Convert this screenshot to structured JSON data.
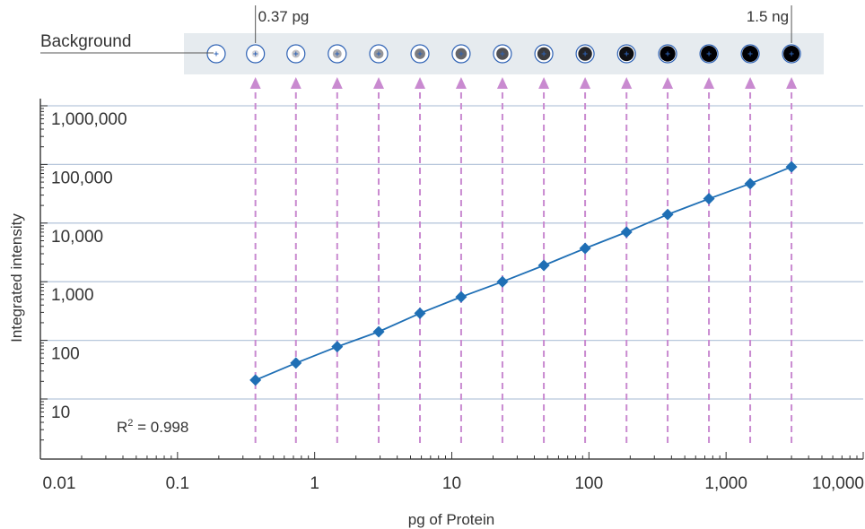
{
  "chart_data": {
    "type": "scatter",
    "xscale": "log",
    "yscale": "log",
    "xlabel": "pg of Protein",
    "ylabel": "Integrated intensity",
    "xlim": [
      0.01,
      10000
    ],
    "ylim": [
      1,
      10000000
    ],
    "x_ticks": [
      {
        "value": 0.01,
        "label": "0.01"
      },
      {
        "value": 0.1,
        "label": "0.1"
      },
      {
        "value": 1,
        "label": "1"
      },
      {
        "value": 10,
        "label": "10"
      },
      {
        "value": 100,
        "label": "100"
      },
      {
        "value": 1000,
        "label": "1,000"
      },
      {
        "value": 10000,
        "label": "10,000"
      }
    ],
    "y_ticks": [
      {
        "value": 10,
        "label": "10"
      },
      {
        "value": 100,
        "label": "100"
      },
      {
        "value": 1000,
        "label": "1,000"
      },
      {
        "value": 10000,
        "label": "10,000"
      },
      {
        "value": 100000,
        "label": "100,000"
      },
      {
        "value": 1000000,
        "label": "1,000,000"
      }
    ],
    "grid": "horizontal",
    "series": [
      {
        "x": [
          0.37,
          0.73,
          1.46,
          2.93,
          5.86,
          11.7,
          23.4,
          46.9,
          93.8,
          188,
          375,
          750,
          1500,
          3000
        ],
        "y": [
          21,
          41,
          78,
          140,
          290,
          550,
          1000,
          1900,
          3700,
          7000,
          14000,
          26000,
          47000,
          91000
        ],
        "color": "#1f6fb5",
        "marker": "diamond"
      }
    ],
    "annotations": {
      "r_squared": {
        "prefix": "R",
        "sup": "2",
        "text": " = 0.998"
      },
      "background_label": "Background",
      "low_label": "0.37 pg",
      "high_label": "1.5 ng"
    },
    "colors": {
      "series": "#1f6fb5",
      "arrows": "#c98ad0",
      "grid": "#b8c8dc",
      "strip": "#e6ebef"
    }
  }
}
